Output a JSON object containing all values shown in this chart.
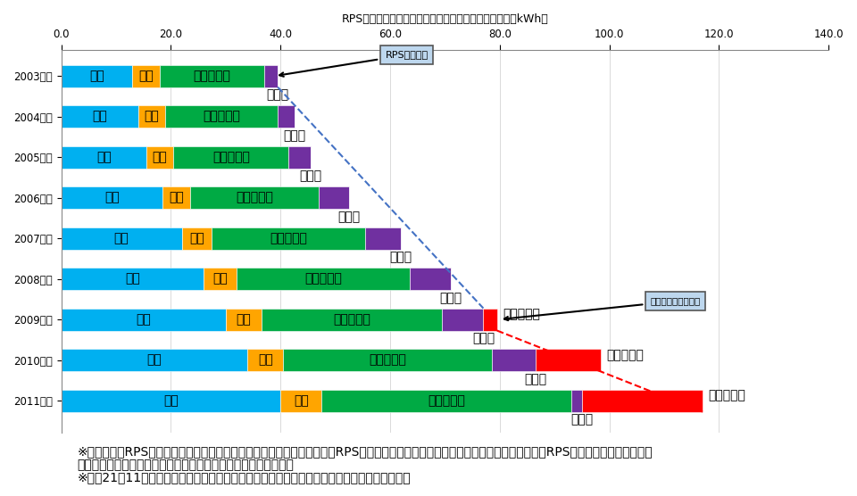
{
  "years": [
    "2003年度",
    "2004年度",
    "2005年度",
    "2006年度",
    "2007年度",
    "2008年度",
    "2009年度",
    "2010年度",
    "2011年度"
  ],
  "wind": [
    13.0,
    14.0,
    15.5,
    18.5,
    22.0,
    26.0,
    30.0,
    34.0,
    40.0
  ],
  "hydro": [
    5.0,
    5.0,
    5.0,
    5.0,
    5.5,
    6.0,
    6.5,
    6.5,
    7.5
  ],
  "biomass": [
    19.0,
    20.5,
    21.0,
    23.5,
    28.0,
    31.5,
    33.0,
    38.0,
    45.5
  ],
  "solar": [
    2.5,
    3.0,
    4.0,
    5.5,
    6.5,
    7.5,
    7.5,
    8.0,
    2.0
  ],
  "specific_solar": [
    0.0,
    0.0,
    0.0,
    0.0,
    0.0,
    0.0,
    2.5,
    12.0,
    22.0
  ],
  "color_wind": "#00B0F0",
  "color_hydro": "#FFA500",
  "color_biomass": "#00AA44",
  "color_solar": "#7030A0",
  "color_specific_solar": "#FF0000",
  "color_annotation_box": "#BDD7EE",
  "title": "RPS法に基づく認定設備からの供給総量の経年変化（億kWh）",
  "xlim_max": 140,
  "xticks": [
    0.0,
    20.0,
    40.0,
    60.0,
    80.0,
    100.0,
    120.0,
    140.0
  ],
  "bar_height": 0.55,
  "label_fontsize": 7.5,
  "axis_fontsize": 8.5,
  "title_fontsize": 9.0,
  "footnote_fontsize": 6.2,
  "footnote1": "※本データはRPS法の認定を受けた設備からの電力供給量を示したもの。RPS法の認定を受けていない設備から発電された電力量及びRPS法の認定を受けた設備か",
  "footnote2": "ら発電され、自家消費された電力量は本データには含まれない。",
  "footnote3": "※平成21年11月より余剰電力買取制度の対象となる太陽光発電設備は特定太陽光として算出。",
  "rps_annotation_text": "RPS制度開始",
  "jutaku_annotation_text": "住宅用余剰買取開始"
}
